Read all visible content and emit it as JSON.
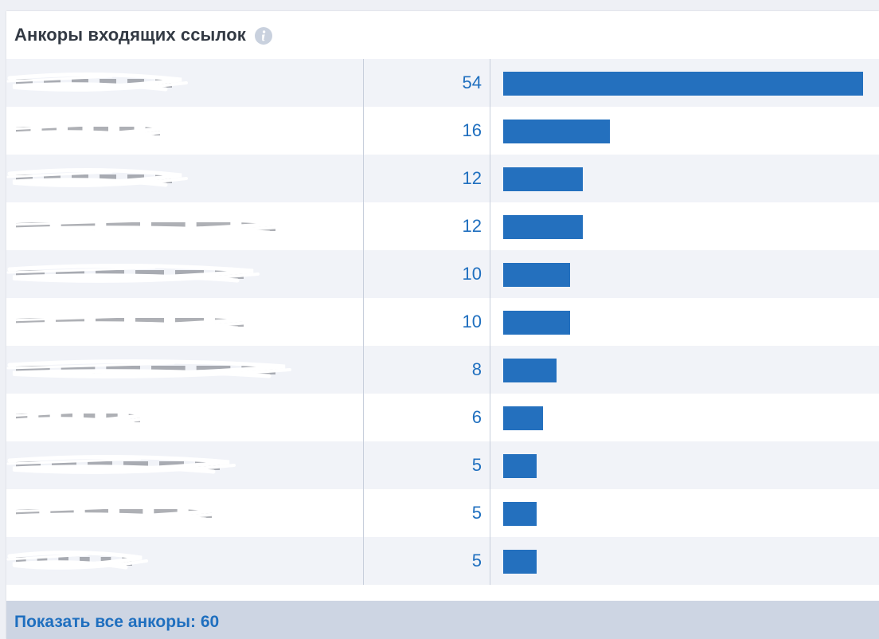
{
  "widget": {
    "title": "Анкоры входящих ссылок",
    "info_icon": "info-icon"
  },
  "table": {
    "rows": [
      {
        "anchor": "",
        "count": "54",
        "value": 54
      },
      {
        "anchor": "",
        "count": "16",
        "value": 16
      },
      {
        "anchor": "",
        "count": "12",
        "value": 12
      },
      {
        "anchor": "",
        "count": "12",
        "value": 12
      },
      {
        "anchor": "",
        "count": "10",
        "value": 10
      },
      {
        "anchor": "",
        "count": "10",
        "value": 10
      },
      {
        "anchor": "",
        "count": "8",
        "value": 8
      },
      {
        "anchor": "",
        "count": "6",
        "value": 6
      },
      {
        "anchor": "",
        "count": "5",
        "value": 5
      },
      {
        "anchor": "",
        "count": "5",
        "value": 5
      },
      {
        "anchor": "",
        "count": "5",
        "value": 5
      }
    ],
    "max_value": 54
  },
  "footer": {
    "show_all_label": "Показать все анкоры: 60"
  },
  "colors": {
    "bar": "#2470be",
    "count_text": "#1f6fbf",
    "link": "#1f6fbf",
    "footer_bg": "#cdd5e3",
    "row_alt_bg": "#f1f3f8"
  }
}
